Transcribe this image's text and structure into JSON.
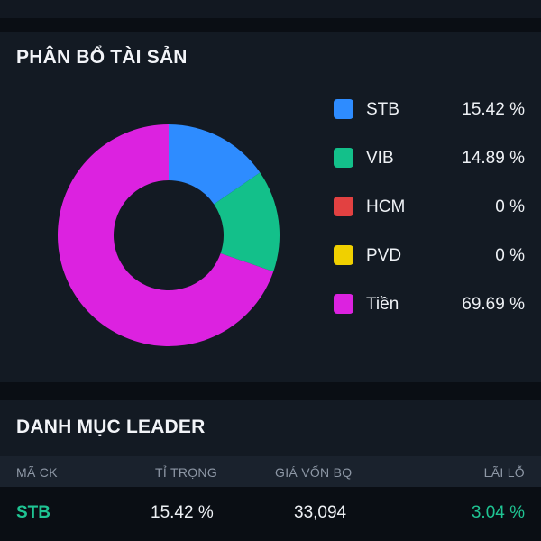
{
  "allocation": {
    "title": "PHÂN BỔ TÀI SẢN",
    "chart_data": {
      "type": "pie",
      "categories": [
        "STB",
        "VIB",
        "HCM",
        "PVD",
        "Tiền"
      ],
      "values": [
        15.42,
        14.89,
        0,
        0,
        69.69
      ],
      "colors": [
        "#2e8cff",
        "#13c08a",
        "#e24141",
        "#f0d000",
        "#dc22e0"
      ]
    },
    "legend": [
      {
        "label": "STB",
        "value": "15.42 %",
        "color": "#2e8cff"
      },
      {
        "label": "VIB",
        "value": "14.89 %",
        "color": "#13c08a"
      },
      {
        "label": "HCM",
        "value": "0 %",
        "color": "#e24141"
      },
      {
        "label": "PVD",
        "value": "0 %",
        "color": "#f0d000"
      },
      {
        "label": "Tiền",
        "value": "69.69 %",
        "color": "#dc22e0"
      }
    ]
  },
  "portfolio": {
    "title": "DANH MỤC LEADER",
    "headers": {
      "code": "MÃ CK",
      "ratio": "TỈ TRỌNG",
      "avg_price": "GIÁ VỐN BQ",
      "profit": "LÃI LỖ"
    },
    "rows": [
      {
        "code": "STB",
        "ratio": "15.42 %",
        "avg_price": "33,094",
        "profit": "3.04 %"
      }
    ]
  },
  "colors": {
    "positive": "#1fc493",
    "background": "#0a0e14",
    "card": "#131a23"
  }
}
